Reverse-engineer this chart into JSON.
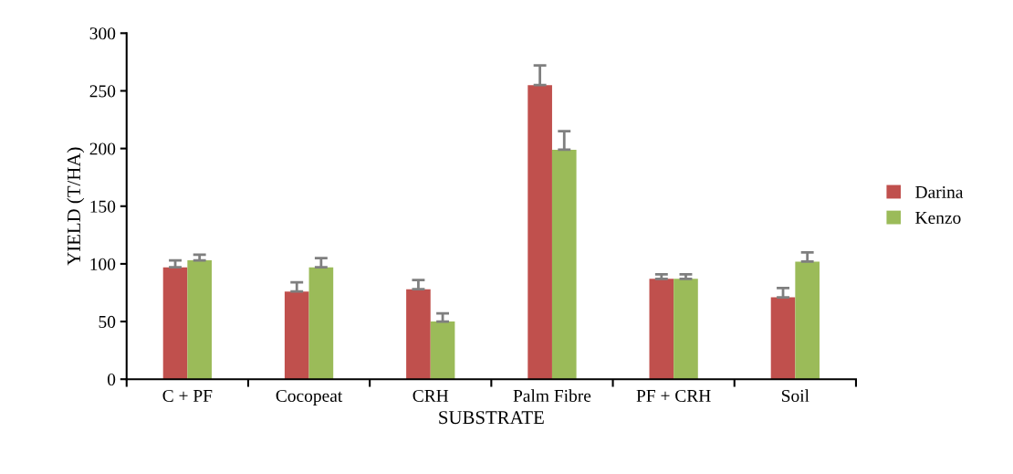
{
  "chart_data": {
    "type": "bar",
    "xlabel": "SUBSTRATE",
    "ylabel": "YIELD (T/HA)",
    "categories": [
      "C + PF",
      "Cocopeat",
      "CRH",
      "Palm Fibre",
      "PF + CRH",
      "Soil"
    ],
    "series": [
      {
        "name": "Darina",
        "color": "#c0504d",
        "values": [
          97,
          76,
          78,
          255,
          87,
          71
        ],
        "errors": [
          [
            97,
            103
          ],
          [
            76,
            84
          ],
          [
            78,
            86
          ],
          [
            255,
            272
          ],
          [
            87,
            91
          ],
          [
            71,
            79
          ]
        ]
      },
      {
        "name": "Kenzo",
        "color": "#9bbb59",
        "values": [
          103,
          97,
          50,
          199,
          87,
          102
        ],
        "errors": [
          [
            103,
            108
          ],
          [
            97,
            105
          ],
          [
            50,
            57
          ],
          [
            199,
            215
          ],
          [
            87,
            91
          ],
          [
            102,
            110
          ]
        ]
      }
    ],
    "ylim": [
      0,
      300
    ],
    "yticks": [
      0,
      50,
      100,
      150,
      200,
      250,
      300
    ],
    "grid": false,
    "legend": "right"
  }
}
